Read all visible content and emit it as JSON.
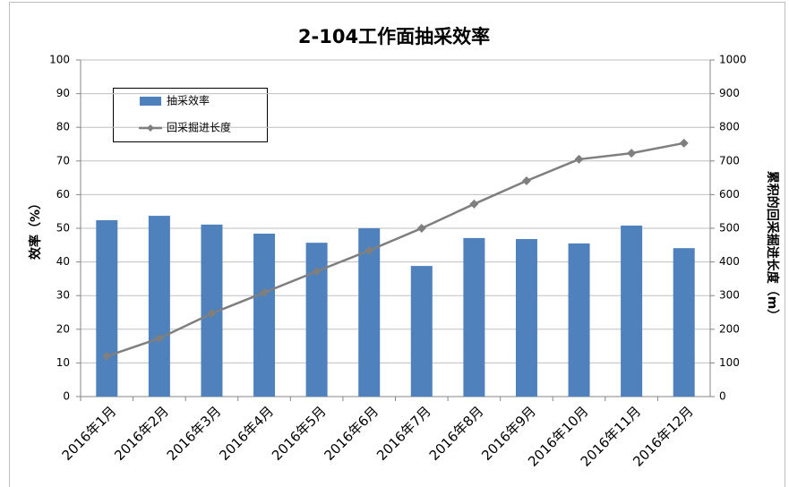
{
  "chart_data": {
    "type": "bar-line",
    "title": "2-104工作面抽采效率",
    "categories": [
      "2016年1月",
      "2016年2月",
      "2016年3月",
      "2016年4月",
      "2016年5月",
      "2016年6月",
      "2016年7月",
      "2016年8月",
      "2016年9月",
      "2016年10月",
      "2016年11月",
      "2016年12月"
    ],
    "series": [
      {
        "name": "抽采效率",
        "type": "bar",
        "color": "#4f81bd",
        "values": [
          52.4,
          53.7,
          51.1,
          48.4,
          45.7,
          50.0,
          38.8,
          47.1,
          46.8,
          45.5,
          50.8,
          44.1
        ]
      },
      {
        "name": "回采掘进长度",
        "type": "line",
        "axis": "y2",
        "color": "#7f7f7f",
        "values": [
          120,
          173,
          247,
          309,
          372,
          434,
          500,
          572,
          641,
          705,
          723,
          753
        ]
      }
    ],
    "y_label": "效率（%）",
    "y2_label": "累积的回采掘进长度（m）",
    "ylim": [
      0,
      100
    ],
    "yticks": [
      0,
      10,
      20,
      30,
      40,
      50,
      60,
      70,
      80,
      90,
      100
    ],
    "y2lim": [
      0,
      1000
    ],
    "y2ticks": [
      0,
      100,
      200,
      300,
      400,
      500,
      600,
      700,
      800,
      900,
      1000
    ],
    "grid": true,
    "legend": "upper-left"
  }
}
